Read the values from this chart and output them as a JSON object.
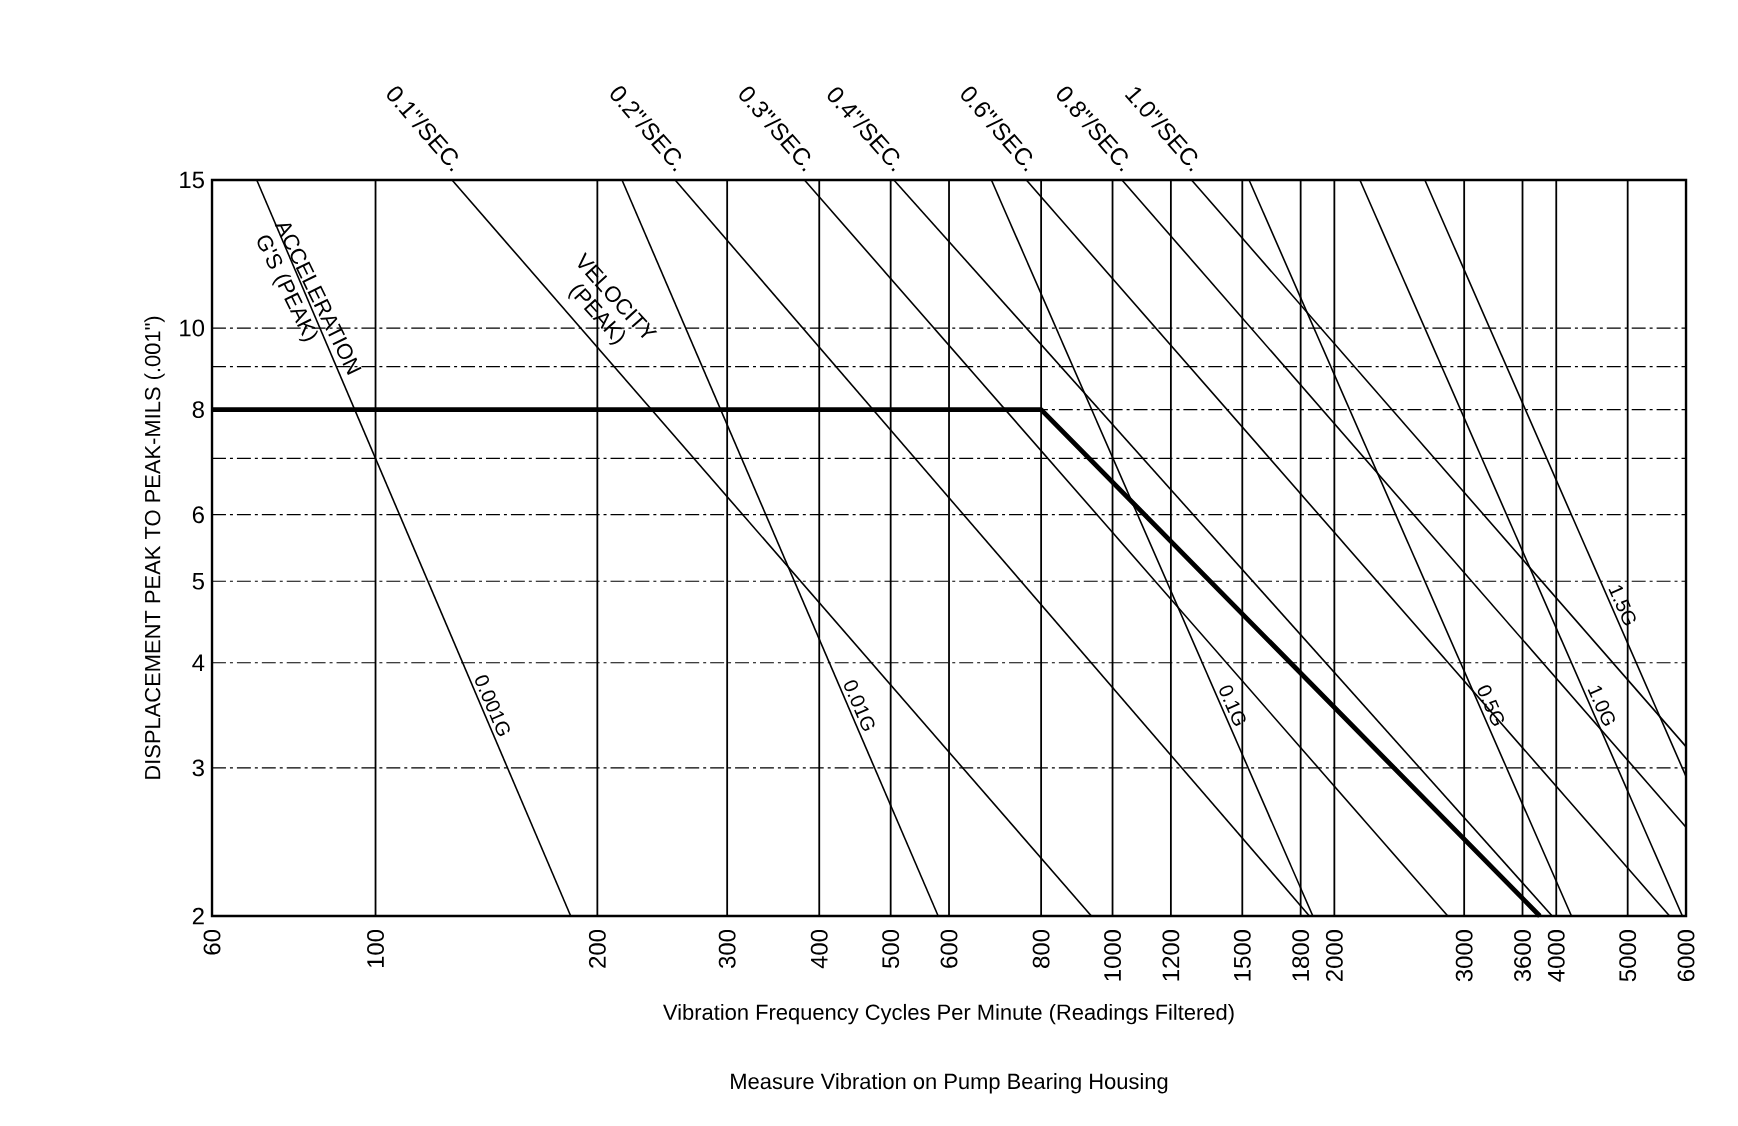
{
  "chart_data": {
    "type": "line",
    "xlabel": "Vibration Frequency Cycles Per Minute (Readings Filtered)",
    "ylabel": "DISPLACEMENT PEAK TO PEAK-MILS (.001\")",
    "annotations": [
      "ACCELERATION G'S (PEAK)",
      "VELOCITY (PEAK)",
      "Measure Vibration on Pump Bearing Housing"
    ],
    "log": "xy",
    "grid": true,
    "marker": "none",
    "xlim": [
      60,
      6000
    ],
    "ylim": [
      2,
      15
    ],
    "xticks": [
      60,
      100,
      200,
      300,
      400,
      500,
      600,
      800,
      1000,
      1200,
      1500,
      1800,
      2000,
      3000,
      3600,
      4000,
      5000,
      6000
    ],
    "yticks": [
      2,
      3,
      4,
      5,
      6,
      {
        "value": 7,
        "label": null
      },
      8,
      {
        "value": 9,
        "label": null
      },
      10,
      15
    ],
    "series": [
      {
        "name": "0.1\"/SEC.",
        "color": "#000000",
        "x": [
          127,
          936
        ],
        "values": [
          15,
          2
        ]
      },
      {
        "name": "0.2\"/SEC.",
        "color": "#000000",
        "x": [
          255,
          1850
        ],
        "values": [
          15,
          2
        ]
      },
      {
        "name": "0.3\"/SEC.",
        "color": "#000000",
        "x": [
          382,
          2850
        ],
        "values": [
          15,
          2
        ]
      },
      {
        "name": "0.4\"/SEC.",
        "color": "#000000",
        "x": [
          505,
          3950
        ],
        "values": [
          15,
          2
        ]
      },
      {
        "name": "0.6\"/SEC.",
        "color": "#000000",
        "x": [
          764,
          5700
        ],
        "values": [
          15,
          2
        ]
      },
      {
        "name": "0.8\"/SEC.",
        "color": "#000000",
        "x": [
          1030,
          6000
        ],
        "values": [
          15,
          2.55
        ]
      },
      {
        "name": "1.0\"/SEC.",
        "color": "#000000",
        "x": [
          1280,
          6000
        ],
        "values": [
          15,
          3.18
        ]
      },
      {
        "name": "0.001G",
        "color": "#000000",
        "x": [
          69,
          184
        ],
        "values": [
          15,
          2
        ]
      },
      {
        "name": "0.01G",
        "color": "#000000",
        "x": [
          216,
          580
        ],
        "values": [
          15,
          2
        ]
      },
      {
        "name": "0.1G",
        "color": "#000000",
        "x": [
          685,
          1870
        ],
        "values": [
          15,
          2
        ]
      },
      {
        "name": "0.5G",
        "color": "#000000",
        "x": [
          1532,
          4195
        ],
        "values": [
          15,
          2
        ]
      },
      {
        "name": "1.0G",
        "color": "#000000",
        "x": [
          2166,
          5933
        ],
        "values": [
          15,
          2
        ]
      },
      {
        "name": "1.5G",
        "color": "#000000",
        "x": [
          2653,
          6000
        ],
        "values": [
          15,
          2.93
        ]
      },
      {
        "color": "#000000",
        "x": [
          60,
          800,
          3800
        ],
        "values": [
          8,
          8,
          2
        ]
      }
    ]
  }
}
